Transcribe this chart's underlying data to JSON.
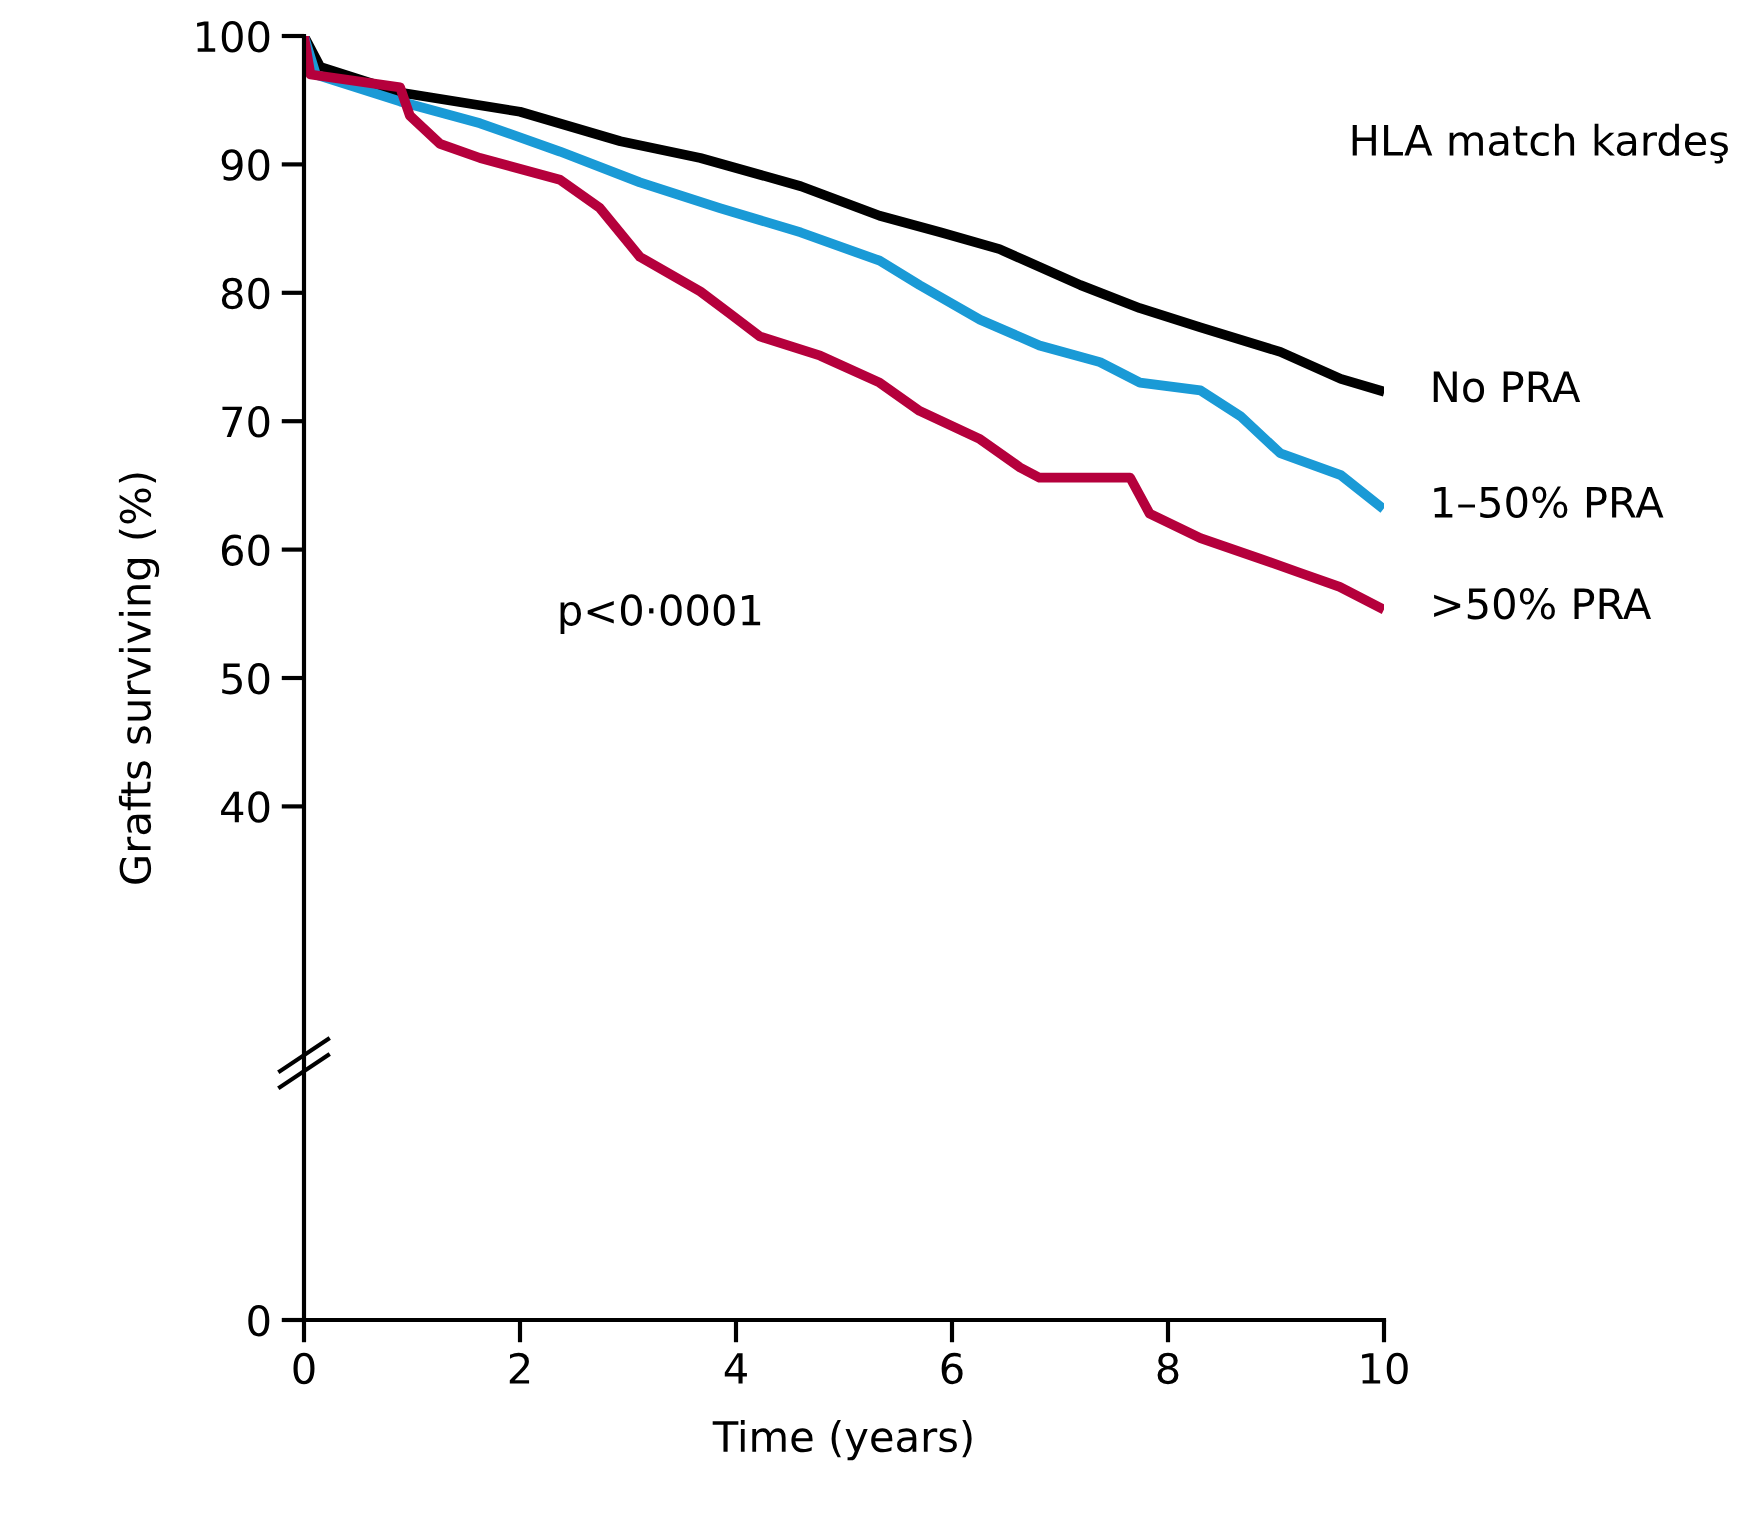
{
  "chart_data": {
    "type": "line",
    "title": "HLA match kardeş",
    "xlabel": "Time (years)",
    "ylabel": "Grafts surviving (%)",
    "xlim": [
      0,
      10
    ],
    "xticks": [
      0,
      2,
      4,
      6,
      8,
      10
    ],
    "ylim": [
      0,
      100
    ],
    "yticks": [
      0,
      40,
      50,
      60,
      70,
      80,
      90,
      100
    ],
    "legend": false,
    "annotations": [
      "p<0·0001"
    ],
    "series": [
      {
        "name": "No PRA",
        "color": "#000000",
        "x": [
          0,
          0.15,
          0.89,
          2,
          2.93,
          3.67,
          4.6,
          5.33,
          5.9,
          6.44,
          7.19,
          7.74,
          8.3,
          9.04,
          9.6,
          9.96
        ],
        "values": [
          100,
          97.6,
          95.6,
          94.1,
          91.8,
          90.5,
          88.3,
          86,
          84.7,
          83.4,
          80.6,
          78.8,
          77.3,
          75.4,
          73.3,
          72.4
        ]
      },
      {
        "name": "1–50% PRA",
        "color": "#1a9ad6",
        "x": [
          0,
          0.11,
          0.89,
          1.63,
          2.37,
          3.11,
          3.85,
          4.6,
          5.33,
          5.7,
          6.26,
          6.81,
          7.37,
          7.74,
          8.3,
          8.67,
          9.04,
          9.6,
          9.96
        ],
        "values": [
          100,
          97.0,
          94.9,
          93.2,
          91.0,
          88.6,
          86.6,
          84.7,
          82.5,
          80.6,
          77.9,
          75.9,
          74.6,
          73,
          72.4,
          70.4,
          67.5,
          65.8,
          63.4
        ]
      },
      {
        "name": ">50% PRA",
        "color": "#b5003c",
        "x": [
          0,
          0.06,
          0.89,
          0.98,
          1.26,
          1.63,
          2.37,
          2.74,
          3.11,
          3.67,
          3.94,
          4.22,
          4.78,
          5.33,
          5.7,
          6.26,
          6.63,
          6.81,
          7.65,
          7.83,
          8.3,
          8.85,
          9.22,
          9.59,
          9.96
        ],
        "values": [
          100,
          97,
          96,
          93.8,
          91.6,
          90.5,
          88.8,
          86.6,
          82.8,
          80.1,
          78.4,
          76.6,
          75.1,
          73,
          70.8,
          68.6,
          66.4,
          65.6,
          65.6,
          62.8,
          60.9,
          59.3,
          58.2,
          57.1,
          55.5
        ]
      }
    ]
  }
}
